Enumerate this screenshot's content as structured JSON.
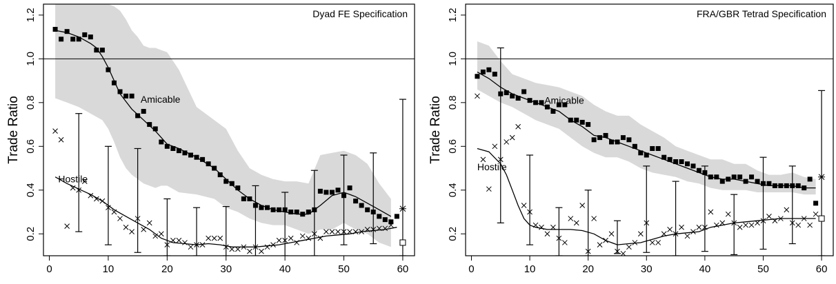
{
  "chart_data": [
    {
      "type": "scatter",
      "title": "Dyad FE Specification",
      "xlabel": "",
      "ylabel": "Trade Ratio",
      "xlim": [
        -1,
        62
      ],
      "ylim": [
        0.1,
        1.25
      ],
      "xticks": [
        0,
        10,
        20,
        30,
        40,
        50,
        60
      ],
      "yticks": [
        0.2,
        0.4,
        0.6,
        0.8,
        1.0,
        1.2
      ],
      "reference_line": 1.0,
      "annotations": [
        {
          "text": "Amicable",
          "x": 15.5,
          "y": 0.8
        },
        {
          "text": "Hostile",
          "x": 1.5,
          "y": 0.435
        }
      ],
      "endpoint_markers": [
        {
          "symbol": "asterisk",
          "x": 60,
          "y": 0.315
        },
        {
          "symbol": "open-square",
          "x": 60,
          "y": 0.16
        }
      ],
      "series": [
        {
          "role": "amicable",
          "marker": "square",
          "x": [
            1,
            2,
            3,
            4,
            5,
            6,
            7,
            8,
            9,
            10,
            11,
            12,
            13,
            14,
            15,
            16,
            17,
            18,
            19,
            20,
            21,
            22,
            23,
            24,
            25,
            26,
            27,
            28,
            29,
            30,
            31,
            32,
            33,
            34,
            35,
            36,
            37,
            38,
            39,
            40,
            41,
            42,
            43,
            44,
            45,
            46,
            47,
            48,
            49,
            50,
            51,
            52,
            53,
            54,
            55,
            56,
            57,
            58,
            59
          ],
          "y": [
            1.135,
            1.09,
            1.125,
            1.09,
            1.09,
            1.11,
            1.1,
            1.04,
            1.04,
            0.95,
            0.89,
            0.85,
            0.83,
            0.83,
            0.74,
            0.76,
            0.7,
            0.68,
            0.62,
            0.6,
            0.59,
            0.58,
            0.57,
            0.56,
            0.55,
            0.54,
            0.52,
            0.5,
            0.47,
            0.44,
            0.43,
            0.41,
            0.36,
            0.36,
            0.33,
            0.32,
            0.32,
            0.31,
            0.31,
            0.31,
            0.3,
            0.3,
            0.29,
            0.3,
            0.31,
            0.395,
            0.39,
            0.39,
            0.4,
            0.375,
            0.41,
            0.35,
            0.33,
            0.31,
            0.3,
            0.28,
            0.265,
            0.255,
            0.28
          ]
        },
        {
          "role": "hostile",
          "marker": "x",
          "x": [
            1,
            2,
            3,
            4,
            5,
            6,
            7,
            8,
            9,
            10,
            11,
            12,
            13,
            14,
            15,
            16,
            17,
            18,
            19,
            20,
            21,
            22,
            23,
            24,
            25,
            26,
            27,
            28,
            29,
            30,
            31,
            32,
            33,
            34,
            35,
            36,
            37,
            38,
            39,
            40,
            41,
            42,
            43,
            44,
            45,
            46,
            47,
            48,
            49,
            50,
            51,
            52,
            53,
            54,
            55,
            56,
            57,
            58
          ],
          "y": [
            0.67,
            0.63,
            0.235,
            0.41,
            0.4,
            0.44,
            0.375,
            0.36,
            0.35,
            0.32,
            0.3,
            0.27,
            0.23,
            0.21,
            0.27,
            0.22,
            0.25,
            0.19,
            0.2,
            0.15,
            0.17,
            0.17,
            0.16,
            0.14,
            0.15,
            0.15,
            0.18,
            0.18,
            0.18,
            0.14,
            0.13,
            0.13,
            0.14,
            0.12,
            0.14,
            0.12,
            0.14,
            0.15,
            0.17,
            0.17,
            0.18,
            0.16,
            0.19,
            0.18,
            0.2,
            0.18,
            0.21,
            0.21,
            0.21,
            0.21,
            0.21,
            0.21,
            0.21,
            0.22,
            0.22,
            0.225,
            0.225,
            0.24
          ]
        }
      ],
      "amicable_fit": {
        "x": [
          1,
          3,
          5,
          7,
          8,
          9,
          10,
          11,
          12,
          14,
          16,
          18,
          20,
          22,
          25,
          28,
          30,
          32,
          34,
          36,
          38,
          40,
          42,
          44,
          46,
          48,
          50,
          52,
          54,
          56,
          58
        ],
        "y": [
          1.13,
          1.12,
          1.1,
          1.07,
          1.05,
          1.01,
          0.96,
          0.9,
          0.84,
          0.77,
          0.72,
          0.67,
          0.61,
          0.59,
          0.55,
          0.5,
          0.45,
          0.4,
          0.36,
          0.33,
          0.31,
          0.3,
          0.29,
          0.29,
          0.33,
          0.375,
          0.39,
          0.37,
          0.34,
          0.31,
          0.28
        ]
      },
      "hostile_fit": {
        "x": [
          1,
          3,
          5,
          7,
          9,
          11,
          13,
          15,
          17,
          19,
          21,
          23,
          25,
          27,
          29,
          31,
          33,
          35,
          37,
          39,
          41,
          43,
          45,
          47,
          49,
          51,
          53,
          55,
          57,
          59
        ],
        "y": [
          0.46,
          0.43,
          0.405,
          0.38,
          0.35,
          0.31,
          0.28,
          0.25,
          0.22,
          0.18,
          0.16,
          0.155,
          0.15,
          0.155,
          0.15,
          0.14,
          0.14,
          0.14,
          0.145,
          0.15,
          0.16,
          0.17,
          0.18,
          0.19,
          0.195,
          0.2,
          0.21,
          0.215,
          0.22,
          0.23
        ]
      },
      "error_bars": [
        {
          "x": 5,
          "low": 0.21,
          "high": 0.75
        },
        {
          "x": 10,
          "low": 0.15,
          "high": 0.6
        },
        {
          "x": 15,
          "low": 0.115,
          "high": 0.59
        },
        {
          "x": 20,
          "low": 0.1,
          "high": 0.36
        },
        {
          "x": 25,
          "low": 0.1,
          "high": 0.32
        },
        {
          "x": 30,
          "low": 0.1,
          "high": 0.325
        },
        {
          "x": 35,
          "low": 0.1,
          "high": 0.42
        },
        {
          "x": 40,
          "low": 0.1,
          "high": 0.39
        },
        {
          "x": 45,
          "low": 0.1,
          "high": 0.49
        },
        {
          "x": 50,
          "low": 0.15,
          "high": 0.56
        },
        {
          "x": 55,
          "low": 0.155,
          "high": 0.57
        },
        {
          "x": 60,
          "low": 0.1,
          "high": 0.815
        }
      ],
      "band": {
        "x": [
          1,
          3,
          5,
          7,
          9,
          10,
          11,
          12,
          13,
          14,
          15,
          16,
          17,
          18,
          19,
          20,
          22,
          25,
          28,
          30,
          32,
          34,
          36,
          38,
          40,
          42,
          44,
          46,
          48,
          50,
          52,
          54,
          56,
          58
        ],
        "upper": [
          1.25,
          1.25,
          1.25,
          1.25,
          1.25,
          1.25,
          1.24,
          1.22,
          1.18,
          1.13,
          1.1,
          1.06,
          1.05,
          1.05,
          1.04,
          1.03,
          0.95,
          0.78,
          0.72,
          0.68,
          0.58,
          0.5,
          0.47,
          0.45,
          0.44,
          0.44,
          0.43,
          0.56,
          0.57,
          0.58,
          0.56,
          0.52,
          0.43,
          0.36
        ],
        "lower": [
          0.82,
          0.8,
          0.78,
          0.75,
          0.72,
          0.68,
          0.62,
          0.55,
          0.5,
          0.47,
          0.45,
          0.43,
          0.42,
          0.41,
          0.42,
          0.42,
          0.39,
          0.38,
          0.36,
          0.32,
          0.3,
          0.27,
          0.25,
          0.24,
          0.24,
          0.22,
          0.2,
          0.22,
          0.22,
          0.25,
          0.22,
          0.2,
          0.16,
          0.14
        ]
      }
    },
    {
      "type": "scatter",
      "title": "FRA/GBR Tetrad Specification",
      "xlabel": "",
      "ylabel": "Trade Ratio",
      "xlim": [
        -1,
        62
      ],
      "ylim": [
        0.1,
        1.25
      ],
      "xticks": [
        0,
        10,
        20,
        30,
        40,
        50,
        60
      ],
      "yticks": [
        0.2,
        0.4,
        0.6,
        0.8,
        1.0,
        1.2
      ],
      "reference_line": 1.0,
      "annotations": [
        {
          "text": "Amicable",
          "x": 12.5,
          "y": 0.795
        },
        {
          "text": "Hostile",
          "x": 1.0,
          "y": 0.49
        }
      ],
      "endpoint_markers": [
        {
          "symbol": "asterisk",
          "x": 60,
          "y": 0.46
        },
        {
          "symbol": "open-square",
          "x": 60,
          "y": 0.27
        }
      ],
      "series": [
        {
          "role": "amicable",
          "marker": "square",
          "x": [
            1,
            2,
            3,
            4,
            5,
            6,
            7,
            8,
            9,
            10,
            11,
            12,
            13,
            14,
            15,
            16,
            17,
            18,
            19,
            20,
            21,
            22,
            23,
            24,
            25,
            26,
            27,
            28,
            29,
            30,
            31,
            32,
            33,
            34,
            35,
            36,
            37,
            38,
            39,
            40,
            41,
            42,
            43,
            44,
            45,
            46,
            47,
            48,
            49,
            50,
            51,
            52,
            53,
            54,
            55,
            56,
            57,
            58,
            59
          ],
          "y": [
            0.92,
            0.94,
            0.95,
            0.93,
            0.84,
            0.845,
            0.83,
            0.82,
            0.85,
            0.81,
            0.8,
            0.8,
            0.78,
            0.76,
            0.79,
            0.79,
            0.72,
            0.72,
            0.71,
            0.7,
            0.63,
            0.64,
            0.65,
            0.62,
            0.62,
            0.64,
            0.63,
            0.6,
            0.57,
            0.56,
            0.59,
            0.59,
            0.55,
            0.54,
            0.53,
            0.53,
            0.52,
            0.51,
            0.49,
            0.48,
            0.46,
            0.46,
            0.44,
            0.45,
            0.46,
            0.46,
            0.44,
            0.46,
            0.44,
            0.43,
            0.43,
            0.42,
            0.42,
            0.42,
            0.42,
            0.42,
            0.41,
            0.45,
            0.34
          ]
        },
        {
          "role": "hostile",
          "marker": "x",
          "x": [
            1,
            2,
            3,
            4,
            5,
            6,
            7,
            8,
            9,
            10,
            11,
            12,
            13,
            14,
            15,
            16,
            17,
            18,
            19,
            20,
            21,
            22,
            23,
            24,
            25,
            26,
            27,
            28,
            29,
            30,
            31,
            32,
            33,
            34,
            35,
            36,
            37,
            38,
            39,
            40,
            41,
            42,
            43,
            44,
            45,
            46,
            47,
            48,
            49,
            50,
            51,
            52,
            53,
            54,
            55,
            56,
            57,
            58,
            59
          ],
          "y": [
            0.83,
            0.54,
            0.405,
            0.6,
            0.54,
            0.62,
            0.64,
            0.69,
            0.33,
            0.3,
            0.24,
            0.23,
            0.2,
            0.23,
            0.18,
            0.16,
            0.27,
            0.25,
            0.33,
            0.12,
            0.27,
            0.15,
            0.17,
            0.2,
            0.12,
            0.11,
            0.14,
            0.16,
            0.2,
            0.25,
            0.16,
            0.16,
            0.2,
            0.22,
            0.2,
            0.23,
            0.19,
            0.21,
            0.23,
            0.23,
            0.3,
            0.24,
            0.25,
            0.29,
            0.25,
            0.23,
            0.24,
            0.24,
            0.25,
            0.26,
            0.28,
            0.26,
            0.27,
            0.31,
            0.25,
            0.24,
            0.27,
            0.24,
            0.29
          ]
        }
      ],
      "amicable_fit": {
        "x": [
          1,
          3,
          5,
          7,
          9,
          11,
          13,
          15,
          17,
          19,
          21,
          23,
          25,
          27,
          29,
          31,
          33,
          35,
          37,
          39,
          41,
          43,
          45,
          47,
          49,
          51,
          53,
          55,
          57,
          59
        ],
        "y": [
          0.94,
          0.91,
          0.87,
          0.84,
          0.82,
          0.8,
          0.78,
          0.76,
          0.72,
          0.69,
          0.65,
          0.64,
          0.62,
          0.6,
          0.58,
          0.56,
          0.54,
          0.52,
          0.5,
          0.48,
          0.46,
          0.45,
          0.45,
          0.44,
          0.43,
          0.42,
          0.42,
          0.42,
          0.41,
          0.41
        ]
      },
      "hostile_fit": {
        "x": [
          1,
          3,
          5,
          6,
          7,
          8,
          9,
          10,
          11,
          13,
          15,
          17,
          19,
          21,
          23,
          25,
          27,
          29,
          31,
          33,
          35,
          37,
          39,
          41,
          43,
          45,
          47,
          49,
          51,
          53,
          55,
          57,
          59
        ],
        "y": [
          0.59,
          0.575,
          0.52,
          0.47,
          0.4,
          0.33,
          0.27,
          0.24,
          0.23,
          0.22,
          0.22,
          0.22,
          0.215,
          0.2,
          0.17,
          0.15,
          0.155,
          0.16,
          0.175,
          0.19,
          0.2,
          0.205,
          0.21,
          0.23,
          0.24,
          0.25,
          0.255,
          0.26,
          0.265,
          0.27,
          0.27,
          0.27,
          0.27
        ]
      },
      "error_bars": [
        {
          "x": 5,
          "low": 0.25,
          "high": 1.05
        },
        {
          "x": 10,
          "low": 0.15,
          "high": 0.56
        },
        {
          "x": 15,
          "low": 0.1,
          "high": 0.32
        },
        {
          "x": 20,
          "low": 0.1,
          "high": 0.4
        },
        {
          "x": 25,
          "low": 0.11,
          "high": 0.26
        },
        {
          "x": 30,
          "low": 0.115,
          "high": 0.51
        },
        {
          "x": 35,
          "low": 0.1,
          "high": 0.44
        },
        {
          "x": 40,
          "low": 0.12,
          "high": 0.51
        },
        {
          "x": 45,
          "low": 0.105,
          "high": 0.38
        },
        {
          "x": 50,
          "low": 0.13,
          "high": 0.55
        },
        {
          "x": 55,
          "low": 0.155,
          "high": 0.51
        },
        {
          "x": 60,
          "low": 0.1,
          "high": 0.855
        }
      ],
      "band": {
        "x": [
          1,
          3,
          5,
          7,
          9,
          11,
          13,
          15,
          17,
          19,
          21,
          23,
          25,
          27,
          29,
          31,
          33,
          35,
          37,
          39,
          41,
          43,
          45,
          47,
          49,
          51,
          53,
          55,
          57,
          59
        ],
        "upper": [
          1.08,
          1.06,
          0.99,
          0.93,
          0.91,
          0.89,
          0.88,
          0.87,
          0.85,
          0.83,
          0.79,
          0.76,
          0.74,
          0.74,
          0.7,
          0.67,
          0.64,
          0.6,
          0.58,
          0.56,
          0.54,
          0.54,
          0.52,
          0.52,
          0.49,
          0.47,
          0.47,
          0.48,
          0.46,
          0.45
        ],
        "lower": [
          0.86,
          0.83,
          0.8,
          0.78,
          0.75,
          0.72,
          0.7,
          0.68,
          0.64,
          0.6,
          0.57,
          0.55,
          0.55,
          0.53,
          0.5,
          0.48,
          0.47,
          0.46,
          0.44,
          0.43,
          0.41,
          0.4,
          0.4,
          0.4,
          0.39,
          0.39,
          0.39,
          0.39,
          0.38,
          0.38
        ]
      }
    }
  ]
}
